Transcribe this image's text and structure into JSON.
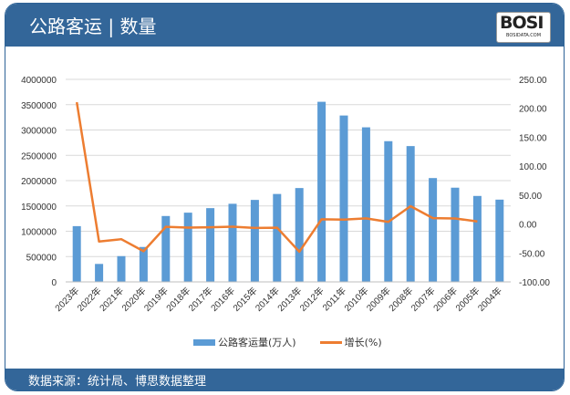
{
  "header": {
    "title": "公路客运 | 数量",
    "logo": "BOSI",
    "logo_sub": "BOSIDATA.COM"
  },
  "footer": {
    "source": "数据来源：统计局、博思数据整理"
  },
  "colors": {
    "frame": "#336699",
    "bar": "#5b9bd5",
    "line": "#ed7d31"
  },
  "chart_data": {
    "type": "bar+line",
    "categories": [
      "2023年",
      "2022年",
      "2021年",
      "2020年",
      "2019年",
      "2018年",
      "2017年",
      "2016年",
      "2015年",
      "2014年",
      "2013年",
      "2012年",
      "2011年",
      "2010年",
      "2009年",
      "2008年",
      "2007年",
      "2006年",
      "2005年",
      "2004年"
    ],
    "series": [
      {
        "name": "公路客运量(万人)",
        "type": "bar",
        "axis": "left",
        "values": [
          1101000,
          354643,
          508693,
          689425,
          1301173,
          1367170,
          1456784,
          1542759,
          1619097,
          1736270,
          1853463,
          3557010,
          3286220,
          3052738,
          2779081,
          2682114,
          2050680,
          1860487,
          1697381,
          1624526
        ]
      },
      {
        "name": "增长(%)",
        "type": "line",
        "axis": "right",
        "values": [
          210.5,
          -30.3,
          -26.2,
          -47.0,
          -4.8,
          -6.2,
          -5.6,
          -4.7,
          -6.7,
          -6.3,
          -47.9,
          8.2,
          7.6,
          9.8,
          3.6,
          30.8,
          10.2,
          9.6,
          4.5,
          null
        ]
      }
    ],
    "left_axis": {
      "ylim": [
        0,
        4000000
      ],
      "ticks": [
        "0",
        "500000",
        "1000000",
        "1500000",
        "2000000",
        "2500000",
        "3000000",
        "3500000",
        "4000000"
      ]
    },
    "right_axis": {
      "ylim": [
        -100,
        250
      ],
      "ticks": [
        "-100.00",
        "-50.00",
        "0.00",
        "50.00",
        "100.00",
        "150.00",
        "200.00",
        "250.00"
      ]
    },
    "grid": true,
    "legend": "bottom"
  }
}
